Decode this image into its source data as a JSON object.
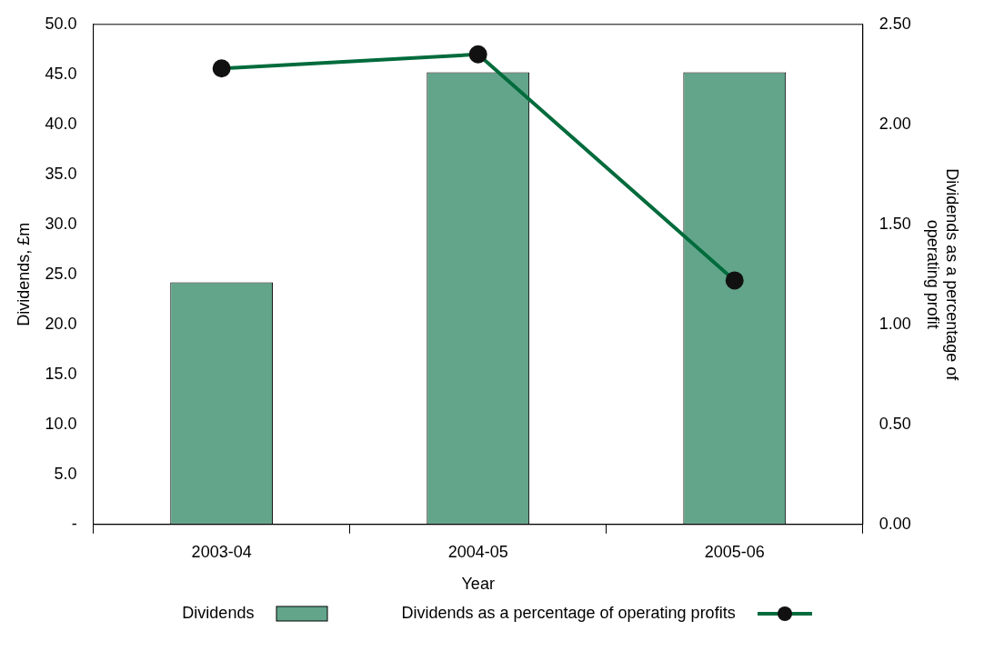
{
  "chart_data": {
    "type": "bar",
    "categories": [
      "2003-04",
      "2004-05",
      "2005-06"
    ],
    "xlabel": "Year",
    "ylabel": "Dividends, £m",
    "y2label": "Dividends as a percentage of operating profit",
    "series": [
      {
        "name": "Dividends",
        "color": "#62a58a",
        "values": [
          24.2,
          45.2,
          45.2
        ]
      },
      {
        "name": "Dividends as a percentage of operating profits",
        "type": "line",
        "axis": "y2",
        "color": "#006b3c",
        "marker": "circle",
        "values": [
          2.28,
          2.35,
          1.22
        ]
      }
    ],
    "ylim": [
      0,
      50
    ],
    "yticks": [
      {
        "value": 0,
        "label": "-"
      },
      {
        "value": 5,
        "label": "5.0"
      },
      {
        "value": 10,
        "label": "10.0"
      },
      {
        "value": 15,
        "label": "15.0"
      },
      {
        "value": 20,
        "label": "20.0"
      },
      {
        "value": 25,
        "label": "25.0"
      },
      {
        "value": 30,
        "label": "30.0"
      },
      {
        "value": 35,
        "label": "35.0"
      },
      {
        "value": 40,
        "label": "40.0"
      },
      {
        "value": 45,
        "label": "45.0"
      },
      {
        "value": 50,
        "label": "50.0"
      }
    ],
    "y2lim": [
      0,
      2.5
    ],
    "y2ticks": [
      {
        "value": 0,
        "label": "0.00"
      },
      {
        "value": 0.5,
        "label": "0.50"
      },
      {
        "value": 1,
        "label": "1.00"
      },
      {
        "value": 1.5,
        "label": "1.50"
      },
      {
        "value": 2,
        "label": "2.00"
      },
      {
        "value": 2.5,
        "label": "2.50"
      }
    ],
    "grid": false,
    "legend": "bottom"
  }
}
